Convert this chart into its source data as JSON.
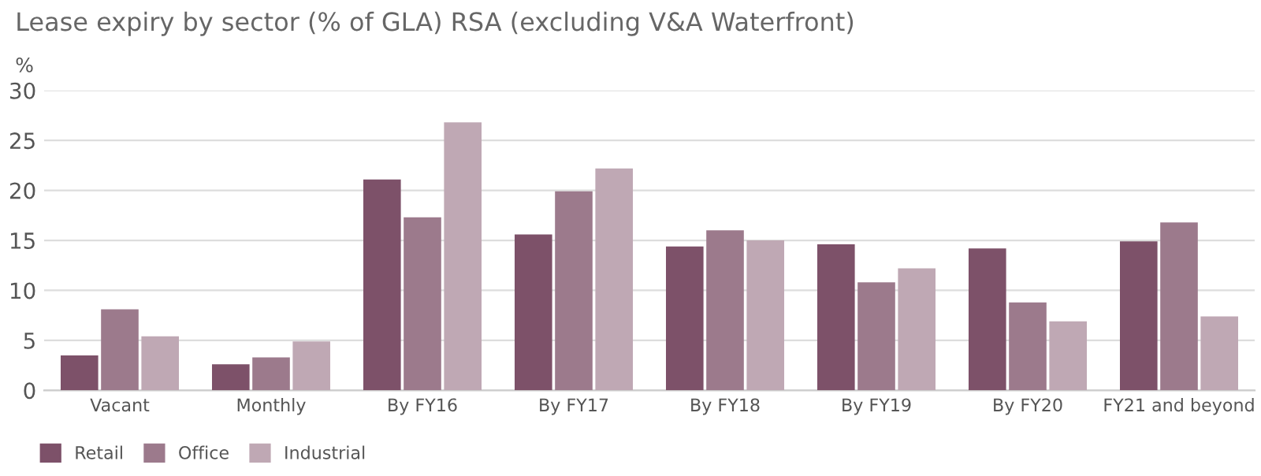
{
  "chart_data": {
    "type": "bar",
    "title": "Lease expiry by sector (% of GLA) RSA (excluding V&A Waterfront)",
    "ylabel": "%",
    "categories": [
      "Vacant",
      "Monthly",
      "By FY16",
      "By FY17",
      "By FY18",
      "By FY19",
      "By FY20",
      "FY21 and beyond"
    ],
    "series": [
      {
        "name": "Retail",
        "color": "#7d5169",
        "values": [
          3.5,
          2.6,
          21.1,
          15.6,
          14.4,
          14.6,
          14.2,
          14.9
        ]
      },
      {
        "name": "Office",
        "color": "#9c7a8c",
        "values": [
          8.1,
          3.3,
          17.3,
          19.9,
          16.0,
          10.8,
          8.8,
          16.8
        ]
      },
      {
        "name": "Industrial",
        "color": "#bfa8b4",
        "values": [
          5.4,
          4.9,
          26.8,
          22.2,
          15.0,
          12.2,
          6.9,
          7.4
        ]
      }
    ],
    "ylim": [
      0,
      30
    ],
    "yticks": [
      0,
      5,
      10,
      15,
      20,
      25,
      30
    ],
    "grid": "y",
    "legend": "bottom left"
  }
}
